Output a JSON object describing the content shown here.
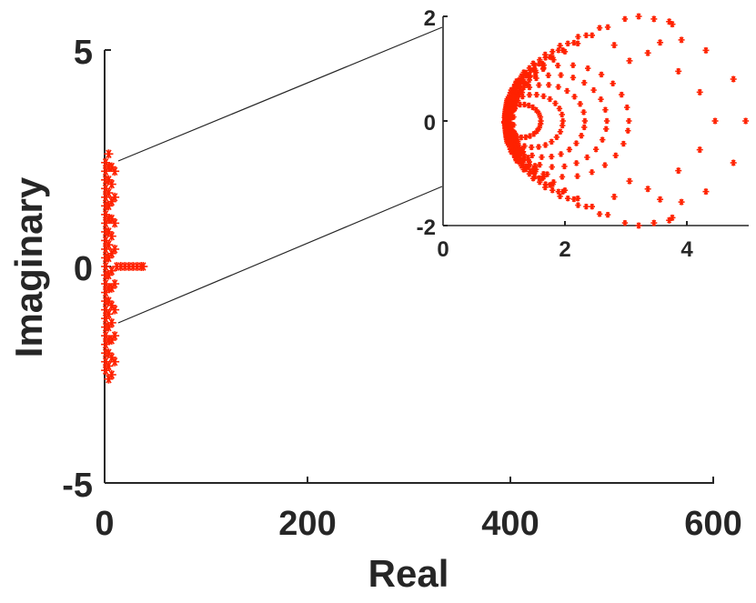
{
  "chart_data": [
    {
      "type": "scatter",
      "title": "",
      "xlabel": "Real",
      "ylabel": "Imaginary",
      "xlim": [
        0,
        600
      ],
      "ylim": [
        -5,
        5
      ],
      "xticks": [
        "0",
        "200",
        "400",
        "600"
      ],
      "yticks": [
        "-5",
        "0",
        "5"
      ],
      "marker": "*",
      "color": "#ff2200",
      "series": [
        {
          "points": [
            [
              1.0,
              -2.4
            ],
            [
              1.0,
              -2.2
            ],
            [
              1.0,
              -2.0
            ],
            [
              1.0,
              -1.8
            ],
            [
              1.0,
              -1.6
            ],
            [
              1.0,
              -1.4
            ],
            [
              1.0,
              -1.2
            ],
            [
              1.0,
              -1.0
            ],
            [
              1.0,
              -0.8
            ],
            [
              1.0,
              -0.6
            ],
            [
              1.0,
              -0.4
            ],
            [
              1.0,
              -0.2
            ],
            [
              1.0,
              0.0
            ],
            [
              1.0,
              0.2
            ],
            [
              1.0,
              0.4
            ],
            [
              1.0,
              0.6
            ],
            [
              1.0,
              0.8
            ],
            [
              1.0,
              1.0
            ],
            [
              1.0,
              1.2
            ],
            [
              1.0,
              1.4
            ],
            [
              1.0,
              1.6
            ],
            [
              1.0,
              1.8
            ],
            [
              1.0,
              2.0
            ],
            [
              1.0,
              2.2
            ],
            [
              1.0,
              2.4
            ],
            [
              4.0,
              -2.6
            ],
            [
              4.0,
              -2.3
            ],
            [
              4.0,
              -2.0
            ],
            [
              4.0,
              -1.7
            ],
            [
              4.0,
              -1.4
            ],
            [
              4.0,
              -1.1
            ],
            [
              4.0,
              -0.8
            ],
            [
              4.0,
              -0.5
            ],
            [
              4.0,
              -0.2
            ],
            [
              4.0,
              0.2
            ],
            [
              4.0,
              0.5
            ],
            [
              4.0,
              0.8
            ],
            [
              4.0,
              1.1
            ],
            [
              4.0,
              1.4
            ],
            [
              4.0,
              1.7
            ],
            [
              4.0,
              2.0
            ],
            [
              4.0,
              2.3
            ],
            [
              4.0,
              2.6
            ],
            [
              7.0,
              -2.5
            ],
            [
              7.0,
              -2.1
            ],
            [
              7.0,
              -1.7
            ],
            [
              7.0,
              -1.3
            ],
            [
              7.0,
              -0.9
            ],
            [
              7.0,
              -0.5
            ],
            [
              7.0,
              -0.1
            ],
            [
              7.0,
              0.3
            ],
            [
              7.0,
              0.7
            ],
            [
              7.0,
              1.1
            ],
            [
              7.0,
              1.5
            ],
            [
              7.0,
              1.9
            ],
            [
              7.0,
              2.3
            ],
            [
              10.0,
              -2.2
            ],
            [
              10.0,
              -1.6
            ],
            [
              10.0,
              -1.0
            ],
            [
              10.0,
              -0.4
            ],
            [
              10.0,
              0.4
            ],
            [
              10.0,
              1.0
            ],
            [
              10.0,
              1.6
            ],
            [
              10.0,
              2.2
            ],
            [
              12.0,
              0.0
            ],
            [
              16.0,
              0.0
            ],
            [
              20.0,
              0.0
            ],
            [
              24.0,
              0.0
            ],
            [
              28.0,
              0.0
            ],
            [
              32.0,
              0.0
            ],
            [
              36.0,
              0.0
            ],
            [
              38.0,
              0.0
            ]
          ]
        }
      ]
    },
    {
      "type": "scatter",
      "title": "",
      "xlabel": "",
      "ylabel": "",
      "xlim": [
        0,
        5
      ],
      "ylim": [
        -2,
        2
      ],
      "xticks": [
        "0",
        "2",
        "4"
      ],
      "yticks": [
        "-2",
        "0",
        "2"
      ],
      "marker": "*",
      "color": "#ff2200",
      "series": [
        {
          "points": [
            [
              4.3,
              1.35
            ],
            [
              4.3,
              -1.35
            ],
            [
              4.2,
              0.55
            ],
            [
              4.2,
              -0.55
            ],
            [
              4.75,
              0.8
            ],
            [
              4.75,
              -0.8
            ],
            [
              4.45,
              0.0
            ],
            [
              4.95,
              0.0
            ],
            [
              3.85,
              0.95
            ],
            [
              3.85,
              -0.95
            ],
            [
              3.9,
              1.55
            ],
            [
              3.9,
              -1.55
            ],
            [
              3.2,
              2.0
            ],
            [
              3.2,
              -2.0
            ],
            [
              3.45,
              1.95
            ],
            [
              3.45,
              -1.95
            ],
            [
              3.7,
              1.9
            ],
            [
              3.7,
              -1.9
            ],
            [
              3.75,
              1.85
            ],
            [
              3.75,
              -1.85
            ],
            [
              3.55,
              1.5
            ],
            [
              3.55,
              -1.5
            ],
            [
              3.35,
              1.3
            ],
            [
              3.35,
              -1.3
            ],
            [
              3.05,
              1.15
            ],
            [
              3.05,
              -1.15
            ],
            [
              2.8,
              1.45
            ],
            [
              2.8,
              -1.45
            ]
          ]
        }
      ]
    }
  ]
}
